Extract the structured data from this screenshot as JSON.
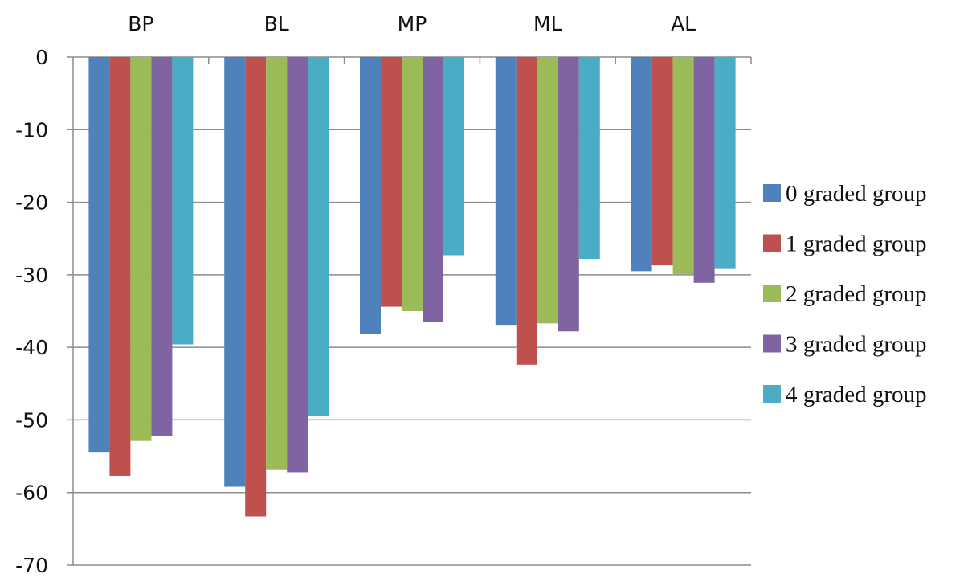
{
  "chart_data": {
    "type": "bar",
    "categories": [
      "BP",
      "BL",
      "MP",
      "ML",
      "AL"
    ],
    "category_axis_position": "top",
    "series": [
      {
        "name": "0 graded group",
        "color": "#4f81bd",
        "values": [
          -54.4,
          -59.2,
          -38.2,
          -36.9,
          -29.5
        ]
      },
      {
        "name": "1 graded group",
        "color": "#c0504d",
        "values": [
          -57.7,
          -63.3,
          -34.4,
          -42.4,
          -28.7
        ]
      },
      {
        "name": "2 graded group",
        "color": "#9bbb59",
        "values": [
          -52.8,
          -56.9,
          -35.0,
          -36.7,
          -29.9
        ]
      },
      {
        "name": "3 graded group",
        "color": "#8064a2",
        "values": [
          -52.2,
          -57.2,
          -36.5,
          -37.8,
          -31.1
        ]
      },
      {
        "name": "4 graded group",
        "color": "#4bacc6",
        "values": [
          -39.6,
          -49.4,
          -27.3,
          -27.8,
          -29.2
        ]
      }
    ],
    "ylim": [
      -70,
      0
    ],
    "yticks": [
      "0",
      "-10",
      "-20",
      "-30",
      "-40",
      "-50",
      "-60",
      "-70"
    ],
    "grid": true,
    "legend_position": "right",
    "title": "",
    "xlabel": "",
    "ylabel": ""
  }
}
